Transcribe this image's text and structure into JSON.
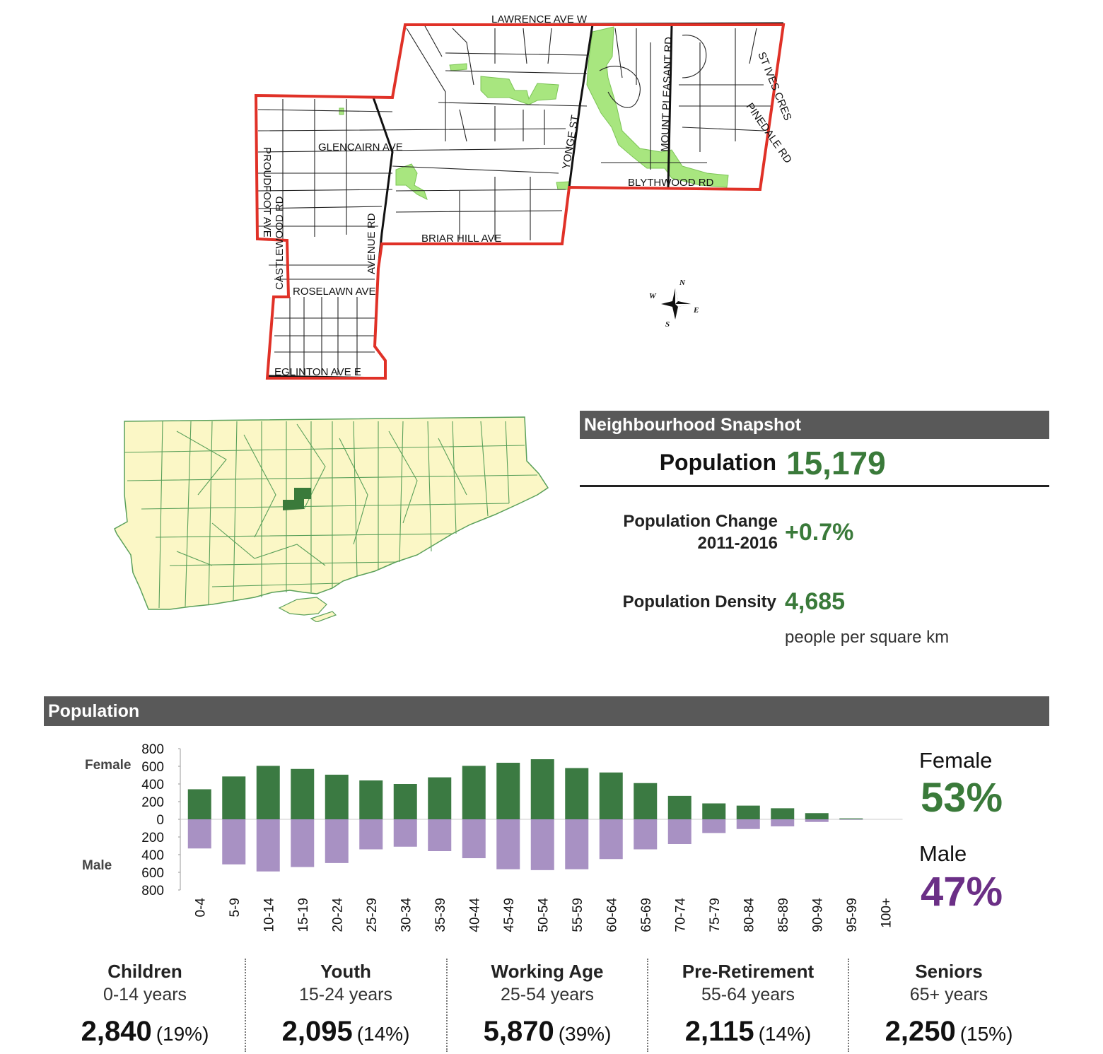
{
  "neighbourhood_map": {
    "streets": [
      "LAWRENCE AVE W",
      "GLENCAIRN AVE",
      "PROUDFOOT AVE",
      "CASTLEWOOD RD",
      "AVENUE RD",
      "ROSELAWN AVE",
      "EGLINTON AVE E",
      "BRIAR HILL AVE",
      "YONGE ST",
      "MOUNT PLEASANT RD",
      "BLYTHWOOD RD",
      "ST IVES CRES",
      "PINEDALE RD"
    ],
    "compass": [
      "N",
      "E",
      "S",
      "W"
    ],
    "colors": {
      "boundary": "#e03127",
      "arterial": "#111111",
      "street": "#222222",
      "park": "#a8e67f",
      "highlight": "#3a7a3a",
      "city_fill": "#fbf7c6",
      "city_border": "#5aa05a"
    }
  },
  "snapshot": {
    "header": "Neighbourhood Snapshot",
    "population_label": "Population",
    "population_value": "15,179",
    "change_label_1": "Population Change",
    "change_label_2": "2011-2016",
    "change_value": "+0.7%",
    "density_label": "Population Density",
    "density_value": "4,685",
    "density_unit": "people per square km"
  },
  "population_section": {
    "header": "Population",
    "female_title": "Female",
    "female_pct": "53%",
    "male_title": "Male",
    "male_pct": "47%",
    "colors": {
      "female": "#3b7a42",
      "male": "#a891c3",
      "female_text": "#3a7a3a",
      "male_text": "#6b2f86"
    }
  },
  "chart_data": {
    "type": "bar",
    "axis_side_labels": {
      "top": "Female",
      "bottom": "Male"
    },
    "categories": [
      "0-4",
      "5-9",
      "10-14",
      "15-19",
      "20-24",
      "25-29",
      "30-34",
      "35-39",
      "40-44",
      "45-49",
      "50-54",
      "55-59",
      "60-64",
      "65-69",
      "70-74",
      "75-79",
      "80-84",
      "85-89",
      "90-94",
      "95-99",
      "100+"
    ],
    "series": [
      {
        "name": "Female",
        "values": [
          340,
          485,
          605,
          570,
          505,
          440,
          400,
          475,
          605,
          640,
          680,
          580,
          530,
          410,
          265,
          180,
          155,
          125,
          70,
          10,
          0
        ]
      },
      {
        "name": "Male",
        "values": [
          330,
          510,
          590,
          540,
          495,
          340,
          310,
          360,
          440,
          565,
          575,
          565,
          450,
          340,
          280,
          155,
          110,
          80,
          30,
          5,
          0
        ]
      }
    ],
    "ytick_labels": [
      "800",
      "600",
      "400",
      "200",
      "0",
      "200",
      "400",
      "600",
      "800"
    ],
    "ylim": [
      -800,
      800
    ],
    "grid": false
  },
  "age_groups": [
    {
      "name": "Children",
      "range": "0-14 years",
      "count": "2,840",
      "pct": "(19%)"
    },
    {
      "name": "Youth",
      "range": "15-24 years",
      "count": "2,095",
      "pct": "(14%)"
    },
    {
      "name": "Working Age",
      "range": "25-54 years",
      "count": "5,870",
      "pct": "(39%)"
    },
    {
      "name": "Pre-Retirement",
      "range": "55-64 years",
      "count": "2,115",
      "pct": "(14%)"
    },
    {
      "name": "Seniors",
      "range": "65+ years",
      "count": "2,250",
      "pct": "(15%)"
    }
  ]
}
